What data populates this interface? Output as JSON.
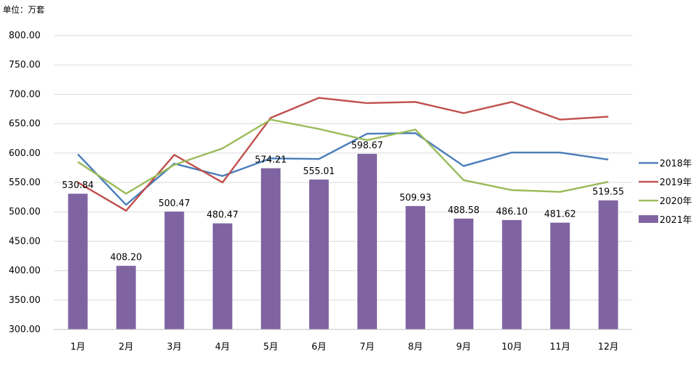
{
  "unit_label": "单位：万套",
  "chart_data": {
    "type": "bar",
    "categories": [
      "1月",
      "2月",
      "3月",
      "4月",
      "5月",
      "6月",
      "7月",
      "8月",
      "9月",
      "10月",
      "11月",
      "12月"
    ],
    "ylim": [
      300,
      800
    ],
    "yticks": [
      300,
      350,
      400,
      450,
      500,
      550,
      600,
      650,
      700,
      750,
      800
    ],
    "ytick_labels": [
      "300.00",
      "350.00",
      "400.00",
      "450.00",
      "500.00",
      "550.00",
      "600.00",
      "650.00",
      "700.00",
      "750.00",
      "800.00"
    ],
    "grid": true,
    "legend_position": "right",
    "series": [
      {
        "name": "2018年",
        "type": "line",
        "color": "#4A7EBB",
        "values": [
          598,
          512,
          582,
          561,
          591,
          590,
          633,
          634,
          578,
          601,
          601,
          589
        ]
      },
      {
        "name": "2019年",
        "type": "line",
        "color": "#C0504D",
        "values": [
          550,
          502,
          597,
          550,
          660,
          694,
          685,
          687,
          668,
          687,
          657,
          662
        ]
      },
      {
        "name": "2020年",
        "type": "line",
        "color": "#9BBB59",
        "values": [
          585,
          531,
          580,
          608,
          657,
          641,
          622,
          640,
          554,
          537,
          534,
          551
        ]
      },
      {
        "name": "2021年",
        "type": "bar",
        "color": "#8064A2",
        "values": [
          530.84,
          408.2,
          500.47,
          480.47,
          574.21,
          555.01,
          598.67,
          509.93,
          488.58,
          486.1,
          481.62,
          519.55
        ],
        "labels": [
          "530.84",
          "408.20",
          "500.47",
          "480.47",
          "574.21",
          "555.01",
          "598.67",
          "509.93",
          "488.58",
          "486.10",
          "481.62",
          "519.55"
        ]
      }
    ]
  }
}
